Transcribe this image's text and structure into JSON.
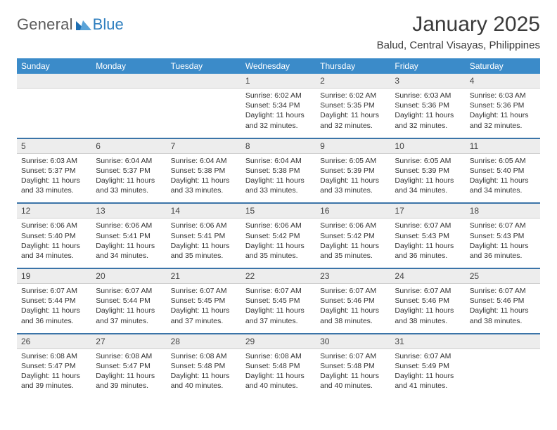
{
  "brand": {
    "general": "General",
    "blue": "Blue",
    "tri_color": "#1f6fb2"
  },
  "title": "January 2025",
  "location": "Balud, Central Visayas, Philippines",
  "colors": {
    "header_bg": "#3b8bc9",
    "header_fg": "#ffffff",
    "daynum_bg": "#ededed",
    "row_divider": "#3b74a8",
    "text": "#333333"
  },
  "weekdays": [
    "Sunday",
    "Monday",
    "Tuesday",
    "Wednesday",
    "Thursday",
    "Friday",
    "Saturday"
  ],
  "weeks": [
    [
      null,
      null,
      null,
      {
        "n": "1",
        "sr": "6:02 AM",
        "ss": "5:34 PM",
        "dl": "11 hours and 32 minutes."
      },
      {
        "n": "2",
        "sr": "6:02 AM",
        "ss": "5:35 PM",
        "dl": "11 hours and 32 minutes."
      },
      {
        "n": "3",
        "sr": "6:03 AM",
        "ss": "5:36 PM",
        "dl": "11 hours and 32 minutes."
      },
      {
        "n": "4",
        "sr": "6:03 AM",
        "ss": "5:36 PM",
        "dl": "11 hours and 32 minutes."
      }
    ],
    [
      {
        "n": "5",
        "sr": "6:03 AM",
        "ss": "5:37 PM",
        "dl": "11 hours and 33 minutes."
      },
      {
        "n": "6",
        "sr": "6:04 AM",
        "ss": "5:37 PM",
        "dl": "11 hours and 33 minutes."
      },
      {
        "n": "7",
        "sr": "6:04 AM",
        "ss": "5:38 PM",
        "dl": "11 hours and 33 minutes."
      },
      {
        "n": "8",
        "sr": "6:04 AM",
        "ss": "5:38 PM",
        "dl": "11 hours and 33 minutes."
      },
      {
        "n": "9",
        "sr": "6:05 AM",
        "ss": "5:39 PM",
        "dl": "11 hours and 33 minutes."
      },
      {
        "n": "10",
        "sr": "6:05 AM",
        "ss": "5:39 PM",
        "dl": "11 hours and 34 minutes."
      },
      {
        "n": "11",
        "sr": "6:05 AM",
        "ss": "5:40 PM",
        "dl": "11 hours and 34 minutes."
      }
    ],
    [
      {
        "n": "12",
        "sr": "6:06 AM",
        "ss": "5:40 PM",
        "dl": "11 hours and 34 minutes."
      },
      {
        "n": "13",
        "sr": "6:06 AM",
        "ss": "5:41 PM",
        "dl": "11 hours and 34 minutes."
      },
      {
        "n": "14",
        "sr": "6:06 AM",
        "ss": "5:41 PM",
        "dl": "11 hours and 35 minutes."
      },
      {
        "n": "15",
        "sr": "6:06 AM",
        "ss": "5:42 PM",
        "dl": "11 hours and 35 minutes."
      },
      {
        "n": "16",
        "sr": "6:06 AM",
        "ss": "5:42 PM",
        "dl": "11 hours and 35 minutes."
      },
      {
        "n": "17",
        "sr": "6:07 AM",
        "ss": "5:43 PM",
        "dl": "11 hours and 36 minutes."
      },
      {
        "n": "18",
        "sr": "6:07 AM",
        "ss": "5:43 PM",
        "dl": "11 hours and 36 minutes."
      }
    ],
    [
      {
        "n": "19",
        "sr": "6:07 AM",
        "ss": "5:44 PM",
        "dl": "11 hours and 36 minutes."
      },
      {
        "n": "20",
        "sr": "6:07 AM",
        "ss": "5:44 PM",
        "dl": "11 hours and 37 minutes."
      },
      {
        "n": "21",
        "sr": "6:07 AM",
        "ss": "5:45 PM",
        "dl": "11 hours and 37 minutes."
      },
      {
        "n": "22",
        "sr": "6:07 AM",
        "ss": "5:45 PM",
        "dl": "11 hours and 37 minutes."
      },
      {
        "n": "23",
        "sr": "6:07 AM",
        "ss": "5:46 PM",
        "dl": "11 hours and 38 minutes."
      },
      {
        "n": "24",
        "sr": "6:07 AM",
        "ss": "5:46 PM",
        "dl": "11 hours and 38 minutes."
      },
      {
        "n": "25",
        "sr": "6:07 AM",
        "ss": "5:46 PM",
        "dl": "11 hours and 38 minutes."
      }
    ],
    [
      {
        "n": "26",
        "sr": "6:08 AM",
        "ss": "5:47 PM",
        "dl": "11 hours and 39 minutes."
      },
      {
        "n": "27",
        "sr": "6:08 AM",
        "ss": "5:47 PM",
        "dl": "11 hours and 39 minutes."
      },
      {
        "n": "28",
        "sr": "6:08 AM",
        "ss": "5:48 PM",
        "dl": "11 hours and 40 minutes."
      },
      {
        "n": "29",
        "sr": "6:08 AM",
        "ss": "5:48 PM",
        "dl": "11 hours and 40 minutes."
      },
      {
        "n": "30",
        "sr": "6:07 AM",
        "ss": "5:48 PM",
        "dl": "11 hours and 40 minutes."
      },
      {
        "n": "31",
        "sr": "6:07 AM",
        "ss": "5:49 PM",
        "dl": "11 hours and 41 minutes."
      },
      null
    ]
  ],
  "labels": {
    "sunrise": "Sunrise:",
    "sunset": "Sunset:",
    "daylight": "Daylight:"
  }
}
